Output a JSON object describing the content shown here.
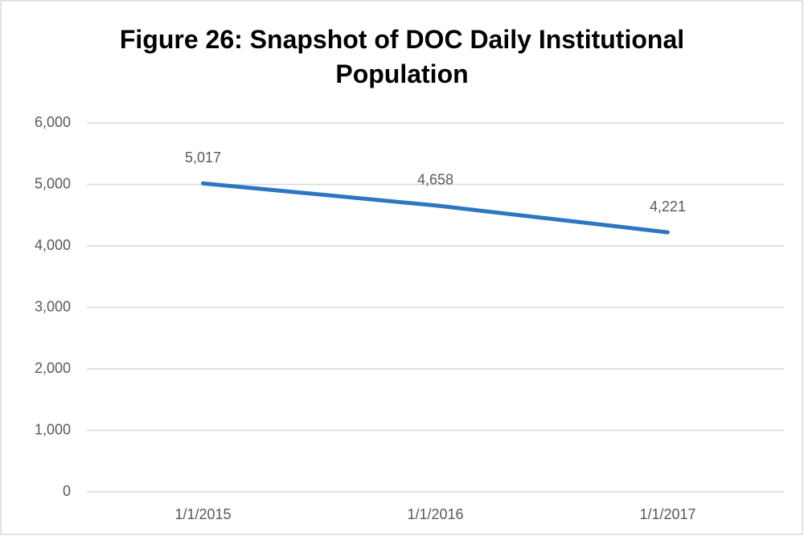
{
  "chart_data": {
    "type": "line",
    "title": "Figure 26: Snapshot of DOC Daily Institutional Population",
    "categories": [
      "1/1/2015",
      "1/1/2016",
      "1/1/2017"
    ],
    "values": [
      5017,
      4658,
      4221
    ],
    "value_labels": [
      "5,017",
      "4,658",
      "4,221"
    ],
    "color": "#2e75c2",
    "ylim": [
      0,
      6000
    ],
    "yticks": [
      0,
      {
        "value": 1000,
        "label": "1,000"
      },
      {
        "value": 2000,
        "label": "2,000"
      },
      {
        "value": 3000,
        "label": "3,000"
      },
      {
        "value": 4000,
        "label": "4,000"
      },
      {
        "value": 5000,
        "label": "5,000"
      },
      {
        "value": 6000,
        "label": "6,000"
      }
    ],
    "grid": true
  }
}
